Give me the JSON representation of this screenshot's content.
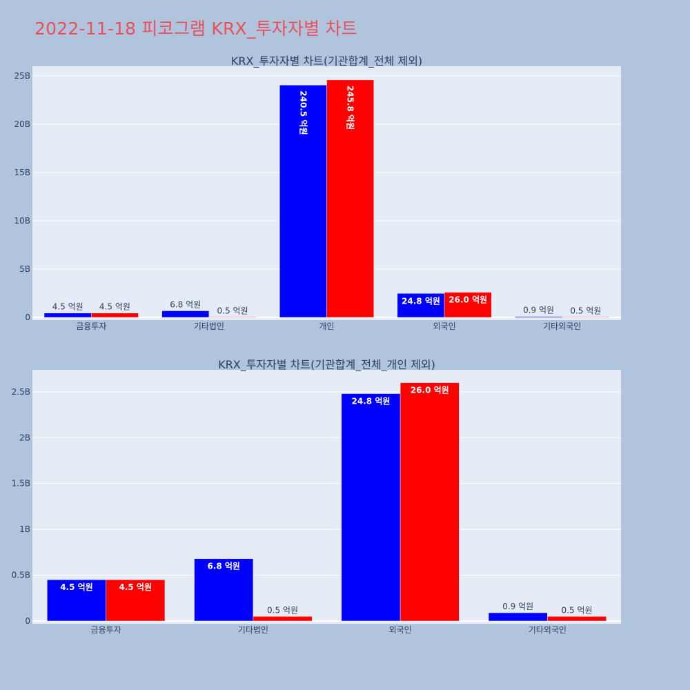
{
  "title": "2022-11-18 피코그램 KRX_투자자별 차트",
  "chart_data": [
    {
      "type": "bar",
      "title": "KRX_투자자별 차트(기관합계_전체 제외)",
      "categories": [
        "금융투자",
        "기타법인",
        "개인",
        "외국인",
        "기타외국인"
      ],
      "ylim": [
        0,
        26
      ],
      "yticks": [
        0,
        5,
        10,
        15,
        20,
        25
      ],
      "ytick_labels": [
        "0",
        "5B",
        "10B",
        "15B",
        "20B",
        "25B"
      ],
      "grid": true,
      "series": [
        {
          "color": "#0000ff",
          "values": [
            0.45,
            0.68,
            24.05,
            2.48,
            0.09
          ],
          "labels": [
            "4.5 억원",
            "6.8 억원",
            "240.5 억원",
            "24.8 억원",
            "0.9 억원"
          ]
        },
        {
          "color": "#ff0000",
          "values": [
            0.45,
            0.05,
            24.58,
            2.6,
            0.05
          ],
          "labels": [
            "4.5 억원",
            "0.5 억원",
            "245.8 억원",
            "26.0 억원",
            "0.5 억원"
          ]
        }
      ]
    },
    {
      "type": "bar",
      "title": "KRX_투자자별 차트(기관합계_전체_개인 제외)",
      "categories": [
        "금융투자",
        "기타법인",
        "외국인",
        "기타외국인"
      ],
      "ylim": [
        0,
        2.74
      ],
      "yticks": [
        0,
        0.5,
        1,
        1.5,
        2,
        2.5
      ],
      "ytick_labels": [
        "0",
        "0.5B",
        "1B",
        "1.5B",
        "2B",
        "2.5B"
      ],
      "grid": true,
      "series": [
        {
          "color": "#0000ff",
          "values": [
            0.45,
            0.68,
            2.48,
            0.09
          ],
          "labels": [
            "4.5 억원",
            "6.8 억원",
            "24.8 억원",
            "0.9 억원"
          ]
        },
        {
          "color": "#ff0000",
          "values": [
            0.45,
            0.05,
            2.6,
            0.05
          ],
          "labels": [
            "4.5 억원",
            "0.5 억원",
            "26.0 억원",
            "0.5 억원"
          ]
        }
      ]
    }
  ]
}
